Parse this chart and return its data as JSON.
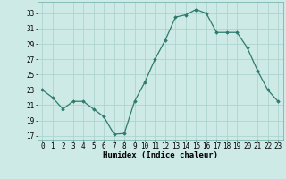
{
  "x": [
    0,
    1,
    2,
    3,
    4,
    5,
    6,
    7,
    8,
    9,
    10,
    11,
    12,
    13,
    14,
    15,
    16,
    17,
    18,
    19,
    20,
    21,
    22,
    23
  ],
  "y": [
    23,
    22,
    20.5,
    21.5,
    21.5,
    20.5,
    19.5,
    17.2,
    17.3,
    21.5,
    24,
    27,
    29.5,
    32.5,
    32.8,
    33.5,
    33,
    30.5,
    30.5,
    30.5,
    28.5,
    25.5,
    23,
    21.5
  ],
  "line_color": "#2d7b6e",
  "marker": "D",
  "marker_size": 1.8,
  "bg_color": "#cdeae6",
  "grid_color": "#aed4cf",
  "xlabel": "Humidex (Indice chaleur)",
  "ylim": [
    16.5,
    34.5
  ],
  "xlim": [
    -0.5,
    23.5
  ],
  "yticks": [
    17,
    19,
    21,
    23,
    25,
    27,
    29,
    31,
    33
  ],
  "xticks": [
    0,
    1,
    2,
    3,
    4,
    5,
    6,
    7,
    8,
    9,
    10,
    11,
    12,
    13,
    14,
    15,
    16,
    17,
    18,
    19,
    20,
    21,
    22,
    23
  ],
  "label_fontsize": 6.5,
  "tick_fontsize": 5.5,
  "lw": 0.9
}
